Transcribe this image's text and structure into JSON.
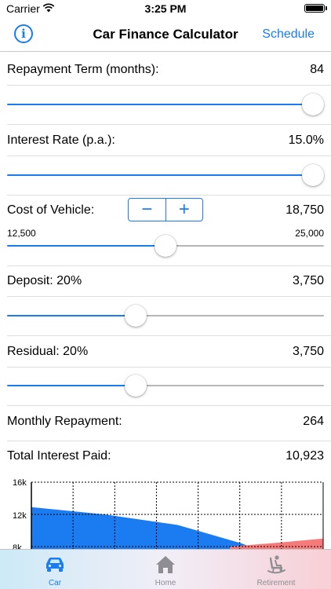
{
  "status_bar": {
    "carrier": "Carrier",
    "time": "3:25 PM"
  },
  "nav": {
    "info_label": "i",
    "title": "Car Finance Calculator",
    "schedule_label": "Schedule"
  },
  "repayment_term": {
    "label": "Repayment Term (months):",
    "value": "84",
    "slider_fraction": 1.0
  },
  "interest_rate": {
    "label": "Interest Rate (p.a.):",
    "value": "15.0%",
    "slider_fraction": 1.0
  },
  "cost_of_vehicle": {
    "label": "Cost of Vehicle:",
    "value": "18,750",
    "stepper_minus": "−",
    "stepper_plus": "+",
    "range_min": "12,500",
    "range_max": "25,000",
    "slider_fraction": 0.5
  },
  "deposit": {
    "label": "Deposit:  20%",
    "value": "3,750",
    "slider_fraction": 0.4
  },
  "residual": {
    "label": "Residual:  20%",
    "value": "3,750",
    "slider_fraction": 0.4
  },
  "monthly_repayment": {
    "label": "Monthly Repayment:",
    "value": "264"
  },
  "total_interest": {
    "label": "Total Interest Paid:",
    "value": "10,923"
  },
  "chart_data": {
    "type": "area",
    "y_ticks": [
      "16k",
      "12k",
      "8k"
    ],
    "y_tick_values": [
      16000,
      12000,
      8000
    ],
    "ylim": [
      8000,
      16000
    ],
    "grid": true,
    "series": [
      {
        "color": "#1a7cf0",
        "points": [
          [
            0,
            12900
          ],
          [
            0.25,
            12000
          ],
          [
            0.5,
            10700
          ],
          [
            0.72,
            8400
          ],
          [
            0.75,
            8000
          ]
        ]
      },
      {
        "color": "#f67a7a",
        "points": [
          [
            0.68,
            8000
          ],
          [
            0.85,
            8500
          ],
          [
            1.0,
            9000
          ]
        ]
      }
    ]
  },
  "tab_bar": {
    "tabs": [
      {
        "label": "Car",
        "icon": "car-icon",
        "active": true
      },
      {
        "label": "Home",
        "icon": "home-icon",
        "active": false
      },
      {
        "label": "Retirement",
        "icon": "rocking-chair-icon",
        "active": false
      }
    ]
  },
  "colors": {
    "accent": "#1a7cf0",
    "track": "#b6b6b6",
    "negative": "#f67a7a"
  }
}
